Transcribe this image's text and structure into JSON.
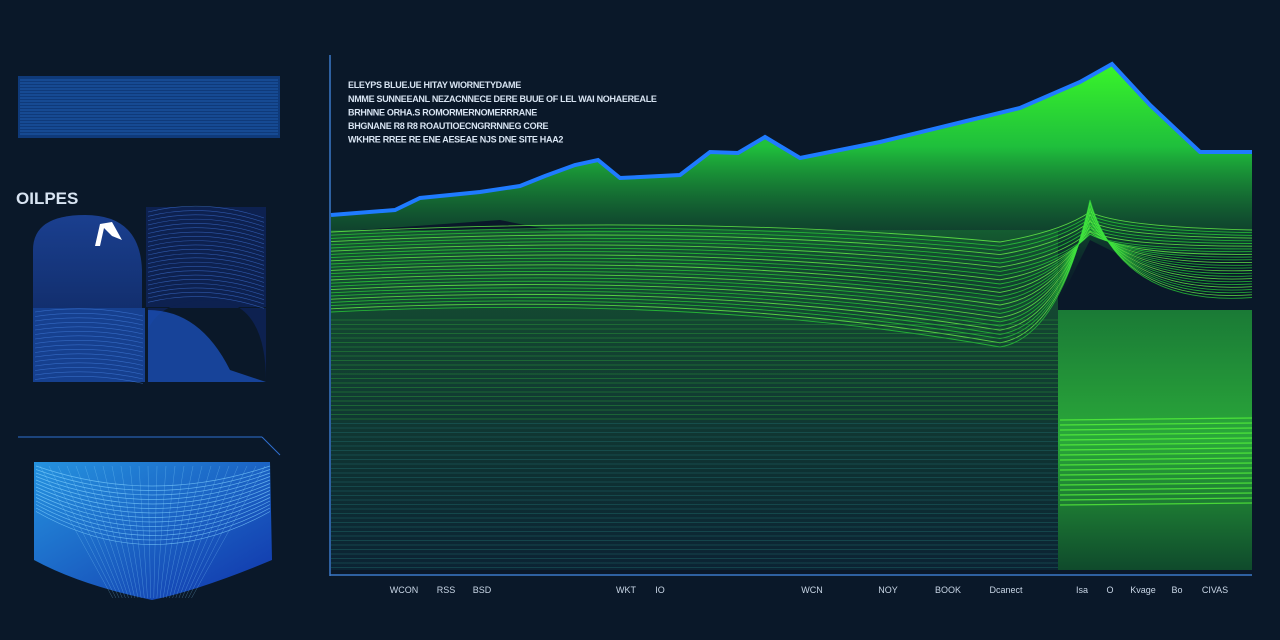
{
  "sidebar": {
    "label": "OILPES"
  },
  "header": {
    "title": "ELEYPS BLUE.UE HITAY WIORNETYDAME",
    "lines": [
      "NMME SUNNEEANL NEZACNNECE DERE BUUE OF LEL WAI NOHAEREALE",
      "BRHNNE ORHA.S ROMORMERNOMERRRANE",
      "BHGNANE R8 R8 ROAUTIOECNGRRNNEG CORE",
      "WKHRE RREE RE ENE AESEAE NJS DNE SITE HAA2"
    ]
  },
  "x_labels": [
    "WCON",
    "RSS",
    "BSD",
    "WKT",
    "IO",
    "WCN",
    "NOY",
    "BOOK",
    "Dcanect",
    "Isa",
    "O",
    "Kvage",
    "Bo",
    "CIVAS"
  ]
}
